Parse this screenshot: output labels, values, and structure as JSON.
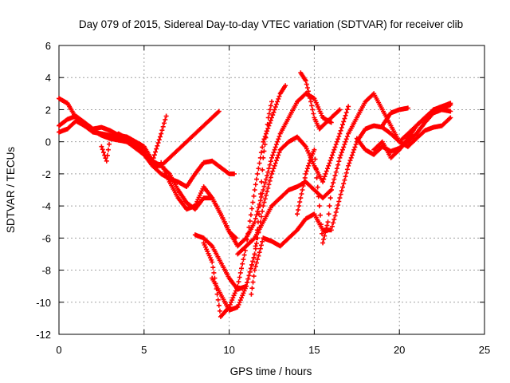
{
  "chart_data": {
    "type": "scatter",
    "title": "Day 079 of 2015, Sidereal Day-to-day VTEC variation (SDTVAR) for receiver clib",
    "xlabel": "GPS time / hours",
    "ylabel": "SDTVAR / TECUs",
    "xlim": [
      0,
      25
    ],
    "ylim": [
      -12,
      6
    ],
    "xticks": [
      "0",
      "5",
      "10",
      "15",
      "20",
      "25"
    ],
    "yticks": [
      "-12",
      "-10",
      "-8",
      "-6",
      "-4",
      "-2",
      "0",
      "2",
      "4",
      "6"
    ],
    "grid": true,
    "legend": "none",
    "marker": "plus",
    "color": "#ff0000",
    "series": [
      {
        "x": [
          0.0,
          0.5,
          1.0,
          1.5,
          2.0,
          2.5,
          3.0,
          3.5,
          4.0,
          4.5,
          5.0,
          5.5,
          6.0,
          6.3
        ],
        "y": [
          2.7,
          2.4,
          1.5,
          1.0,
          0.6,
          0.5,
          0.4,
          0.2,
          0.0,
          -0.3,
          -0.8,
          -1.2,
          0.5,
          1.6
        ]
      },
      {
        "x": [
          0.0,
          0.5,
          1.0,
          1.5,
          2.0,
          2.5,
          3.0,
          3.5,
          4.0,
          4.5,
          5.0,
          5.5,
          6.0,
          6.5,
          7.0,
          7.5,
          8.0,
          8.5,
          9.0,
          9.4
        ],
        "y": [
          1.0,
          1.4,
          1.6,
          1.2,
          0.8,
          0.9,
          0.7,
          0.4,
          0.3,
          0.0,
          -0.3,
          -1.2,
          -1.5,
          -1.0,
          -0.5,
          0.0,
          0.5,
          1.0,
          1.5,
          1.9
        ]
      },
      {
        "x": [
          0.0,
          0.5,
          1.0,
          1.5,
          2.0,
          2.5,
          3.0,
          3.5,
          4.0,
          4.5,
          5.0,
          5.5,
          6.0,
          6.5,
          7.0,
          7.5,
          8.0,
          8.5,
          9.0,
          9.5,
          10.0,
          10.3
        ],
        "y": [
          0.6,
          0.8,
          1.3,
          1.0,
          0.7,
          0.4,
          0.2,
          0.1,
          0.0,
          -0.4,
          -0.8,
          -1.5,
          -2.0,
          -2.3,
          -2.5,
          -2.8,
          -2.0,
          -1.3,
          -1.2,
          -1.6,
          -2.0,
          -2.0
        ]
      },
      {
        "x": [
          2.5,
          2.8,
          3.0,
          3.5,
          4.0,
          4.5,
          5.0,
          5.5,
          6.0,
          6.5,
          7.0,
          7.5,
          8.0,
          8.5,
          9.0,
          9.5,
          10.0,
          10.4
        ],
        "y": [
          -0.3,
          -1.2,
          0.2,
          0.5,
          0.2,
          -0.2,
          -0.6,
          -1.5,
          -1.5,
          -2.0,
          -3.0,
          -3.8,
          -4.2,
          -3.5,
          -3.5,
          -4.5,
          -5.6,
          -6.0
        ]
      },
      {
        "x": [
          6.0,
          6.5,
          7.0,
          7.5,
          8.0,
          8.5,
          9.0,
          9.5,
          10.0,
          10.5,
          11.0,
          11.5,
          12.0,
          12.5,
          13.0,
          13.5,
          14.0,
          14.5,
          15.0,
          15.5,
          16.0
        ],
        "y": [
          -1.3,
          -2.5,
          -3.5,
          -4.2,
          -4.0,
          -2.8,
          -3.5,
          -4.5,
          -5.6,
          -6.5,
          -6.0,
          -5.0,
          -3.0,
          -1.0,
          0.5,
          1.5,
          2.5,
          3.0,
          2.7,
          1.5,
          1.2
        ]
      },
      {
        "x": [
          8.5,
          9.0,
          9.3,
          9.5,
          10.0,
          10.5,
          11.0,
          11.5,
          12.0,
          12.5,
          13.0,
          13.3
        ],
        "y": [
          -6.3,
          -7.5,
          -9.5,
          -10.9,
          -10.3,
          -9.0,
          -6.5,
          -3.0,
          0.0,
          1.5,
          3.0,
          3.5
        ]
      },
      {
        "x": [
          8.0,
          8.5,
          9.0,
          9.5,
          10.0,
          10.5,
          11.0,
          11.5,
          12.0,
          12.5,
          13.0,
          13.5,
          14.0,
          14.5,
          15.0,
          15.5,
          16.0,
          16.5,
          17.0
        ],
        "y": [
          -5.8,
          -6.0,
          -6.5,
          -7.5,
          -8.5,
          -9.2,
          -9.0,
          -7.0,
          -4.0,
          -2.0,
          -0.5,
          0.0,
          0.3,
          -0.3,
          -1.5,
          -2.5,
          -1.0,
          0.5,
          2.2
        ]
      },
      {
        "x": [
          9.0,
          9.5,
          10.0,
          10.5,
          11.0,
          11.5,
          11.8,
          12.0,
          12.3,
          12.5
        ],
        "y": [
          -8.5,
          -9.5,
          -10.5,
          -10.3,
          -9.0,
          -7.0,
          -4.0,
          -1.0,
          1.5,
          2.5
        ]
      },
      {
        "x": [
          10.5,
          11.0,
          11.5,
          12.0,
          12.5,
          13.0,
          13.5,
          14.0,
          14.5,
          15.0,
          15.5,
          16.0,
          16.5,
          17.0,
          17.5,
          18.0,
          18.5,
          19.0,
          19.5,
          20.0,
          20.5,
          21.0,
          21.5,
          22.0,
          22.5,
          23.0
        ],
        "y": [
          -7.0,
          -6.5,
          -6.0,
          -5.0,
          -4.0,
          -3.5,
          -3.0,
          -2.8,
          -2.5,
          -3.0,
          -3.5,
          -3.0,
          -1.0,
          0.5,
          1.5,
          2.5,
          3.0,
          2.0,
          1.0,
          0.0,
          0.5,
          1.0,
          1.5,
          1.8,
          2.0,
          1.9
        ]
      },
      {
        "x": [
          11.3,
          11.5,
          12.0,
          12.5,
          13.0,
          13.5,
          14.0,
          14.5,
          15.0,
          15.5,
          16.0,
          16.5,
          17.0,
          17.5,
          18.0,
          18.5,
          19.0,
          19.5,
          20.0,
          20.5,
          21.0,
          21.5,
          22.0,
          22.5,
          23.0
        ],
        "y": [
          -9.5,
          -8.0,
          -6.0,
          -6.2,
          -6.5,
          -6.0,
          -5.5,
          -4.8,
          -4.5,
          -5.5,
          -5.5,
          -3.5,
          -1.5,
          0.0,
          0.8,
          1.0,
          0.9,
          0.5,
          0.0,
          -0.3,
          0.2,
          0.7,
          0.9,
          1.0,
          1.5
        ]
      },
      {
        "x": [
          14.0,
          14.3,
          14.5,
          14.8,
          15.0,
          15.3,
          15.5,
          15.8,
          16.0
        ],
        "y": [
          -4.5,
          -3.0,
          -2.0,
          -1.0,
          -0.5,
          -4.0,
          -6.3,
          -5.0,
          -3.0
        ]
      },
      {
        "x": [
          14.2,
          14.5,
          14.8,
          15.0,
          15.3,
          15.5,
          16.0,
          16.5
        ],
        "y": [
          4.3,
          3.8,
          2.5,
          1.5,
          0.8,
          1.0,
          1.5,
          2.0
        ]
      },
      {
        "x": [
          17.5,
          18.0,
          18.5,
          19.0,
          19.5,
          20.0,
          20.5,
          21.0,
          21.5,
          22.0,
          22.5,
          23.0
        ],
        "y": [
          0.2,
          -0.5,
          -0.8,
          -0.3,
          -0.6,
          -0.4,
          0.0,
          0.5,
          1.2,
          1.8,
          2.1,
          2.3
        ]
      },
      {
        "x": [
          18.5,
          19.0,
          19.5,
          20.0,
          20.5,
          21.0,
          21.5,
          22.0,
          22.5,
          23.0
        ],
        "y": [
          -0.5,
          0.0,
          -1.0,
          -0.5,
          0.2,
          1.0,
          1.5,
          2.0,
          2.2,
          2.4
        ]
      },
      {
        "x": [
          19.0,
          19.5,
          20.0,
          20.5
        ],
        "y": [
          1.0,
          1.8,
          2.0,
          2.1
        ]
      }
    ]
  }
}
